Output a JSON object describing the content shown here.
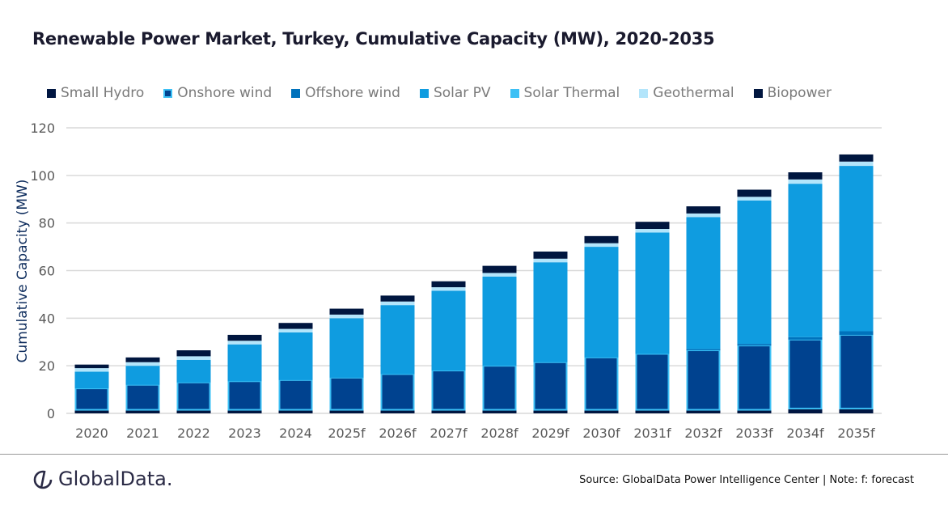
{
  "chart_data": {
    "type": "bar",
    "stacked": true,
    "title": "Renewable Power Market, Turkey, Cumulative Capacity (MW), 2020-2035",
    "xlabel": "",
    "ylabel": "Cumulative Capacity (MW)",
    "ylim": [
      0,
      120
    ],
    "yticks": [
      0,
      20,
      40,
      60,
      80,
      100,
      120
    ],
    "grid": true,
    "legend_position": "top",
    "categories": [
      "2020",
      "2021",
      "2022",
      "2023",
      "2024",
      "2025f",
      "2026f",
      "2027f",
      "2028f",
      "2029f",
      "2030f",
      "2031f",
      "2032f",
      "2033f",
      "2034f",
      "2035f"
    ],
    "series": [
      {
        "name": "Small Hydro",
        "color": "#001641",
        "values": [
          1.5,
          1.5,
          1.5,
          1.5,
          1.5,
          1.5,
          1.5,
          1.5,
          1.5,
          1.5,
          1.5,
          1.5,
          1.5,
          1.5,
          2,
          2
        ]
      },
      {
        "name": "Onshore wind",
        "color": "#00428f",
        "border": "#3cc0f5",
        "values": [
          9,
          10.5,
          11.5,
          12,
          12.5,
          13.5,
          15,
          16.5,
          18.5,
          20,
          22,
          23.5,
          25,
          27,
          29,
          31
        ]
      },
      {
        "name": "Offshore wind",
        "color": "#0072bc",
        "values": [
          0,
          0,
          0,
          0,
          0,
          0,
          0,
          0,
          0,
          0,
          0,
          0,
          0.5,
          0.7,
          1,
          1.5
        ]
      },
      {
        "name": "Solar PV",
        "color": "#0f9ce0",
        "values": [
          7,
          8,
          9.5,
          15.5,
          20,
          25,
          29,
          33.5,
          37.5,
          42,
          46.5,
          51,
          55.5,
          60.3,
          64.5,
          69.5
        ]
      },
      {
        "name": "Solar Thermal",
        "color": "#3cc0f5",
        "values": [
          0,
          0,
          0,
          0,
          0,
          0,
          0,
          0,
          0,
          0,
          0,
          0,
          0,
          0,
          0,
          0
        ]
      },
      {
        "name": "Geothermal",
        "color": "#b3e5fb",
        "values": [
          1.5,
          1.5,
          1.5,
          1.5,
          1.5,
          1.5,
          1.5,
          1.5,
          1.5,
          1.5,
          1.5,
          1.5,
          1.5,
          1.5,
          1.8,
          1.8
        ]
      },
      {
        "name": "Biopower",
        "color": "#00163f",
        "values": [
          1.5,
          2,
          2.5,
          2.5,
          2.5,
          2.5,
          2.5,
          2.5,
          3,
          3,
          3,
          3,
          3,
          3,
          3,
          3
        ]
      }
    ]
  },
  "footer": {
    "logo_text": "GlobalData.",
    "source": "Source: GlobalData Power Intelligence Center | Note: f: forecast"
  }
}
